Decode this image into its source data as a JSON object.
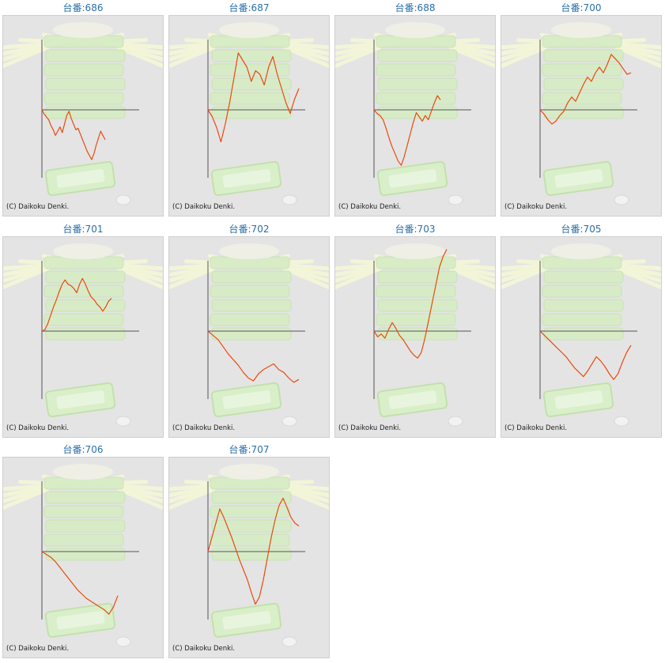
{
  "copyright": "(C) Daikoku Denki.",
  "line_color": "#e84a0c",
  "chart_data": [
    {
      "type": "line",
      "title": "台番:686",
      "y": [
        0,
        -6,
        -10,
        -14,
        -22,
        -28,
        -36,
        -30,
        -24,
        -32,
        -20,
        -8,
        -2,
        -12,
        -20,
        -28,
        -26,
        -34,
        -42,
        -50,
        -58,
        -64,
        -70,
        -62,
        -50,
        -40,
        -30,
        -36,
        -42
      ]
    },
    {
      "type": "line",
      "title": "台番:687",
      "y": [
        0,
        -10,
        -25,
        -45,
        -20,
        10,
        45,
        80,
        70,
        60,
        40,
        55,
        50,
        35,
        60,
        75,
        50,
        30,
        10,
        -5,
        15,
        30
      ]
    },
    {
      "type": "line",
      "title": "台番:688",
      "y": [
        0,
        -5,
        -8,
        -14,
        -26,
        -40,
        -52,
        -62,
        -72,
        -78,
        -66,
        -50,
        -34,
        -18,
        -4,
        -10,
        -16,
        -8,
        -14,
        -2,
        10,
        20,
        14
      ]
    },
    {
      "type": "line",
      "title": "台番:700",
      "y": [
        0,
        -6,
        -14,
        -20,
        -16,
        -8,
        -2,
        10,
        18,
        12,
        24,
        36,
        46,
        40,
        52,
        60,
        52,
        64,
        78,
        72,
        66,
        58,
        50,
        52
      ]
    },
    {
      "type": "line",
      "title": "台番:701",
      "y": [
        0,
        2,
        10,
        22,
        34,
        44,
        56,
        66,
        72,
        66,
        64,
        60,
        54,
        66,
        74,
        66,
        56,
        48,
        44,
        38,
        34,
        28,
        34,
        42,
        46
      ]
    },
    {
      "type": "line",
      "title": "台番:702",
      "y": [
        0,
        -6,
        -12,
        -22,
        -32,
        -40,
        -48,
        -58,
        -66,
        -70,
        -60,
        -54,
        -50,
        -46,
        -54,
        -58,
        -66,
        -72,
        -68
      ]
    },
    {
      "type": "line",
      "title": "台番:703",
      "y": [
        0,
        -8,
        -4,
        -10,
        2,
        12,
        4,
        -6,
        -12,
        -20,
        -28,
        -34,
        -38,
        -30,
        -10,
        15,
        40,
        65,
        90,
        105,
        115
      ]
    },
    {
      "type": "line",
      "title": "台番:705",
      "y": [
        0,
        -6,
        -12,
        -18,
        -24,
        -30,
        -36,
        -44,
        -52,
        -58,
        -64,
        -56,
        -46,
        -36,
        -42,
        -50,
        -60,
        -68,
        -60,
        -44,
        -30,
        -20
      ]
    },
    {
      "type": "line",
      "title": "台番:706",
      "y": [
        0,
        -4,
        -8,
        -14,
        -22,
        -30,
        -38,
        -46,
        -54,
        -60,
        -66,
        -70,
        -74,
        -78,
        -82,
        -88,
        -78,
        -62
      ]
    },
    {
      "type": "line",
      "title": "台番:707",
      "y": [
        0,
        20,
        40,
        60,
        48,
        34,
        20,
        4,
        -12,
        -26,
        -40,
        -58,
        -74,
        -64,
        -40,
        -10,
        20,
        45,
        65,
        75,
        62,
        48,
        40,
        36
      ]
    }
  ]
}
